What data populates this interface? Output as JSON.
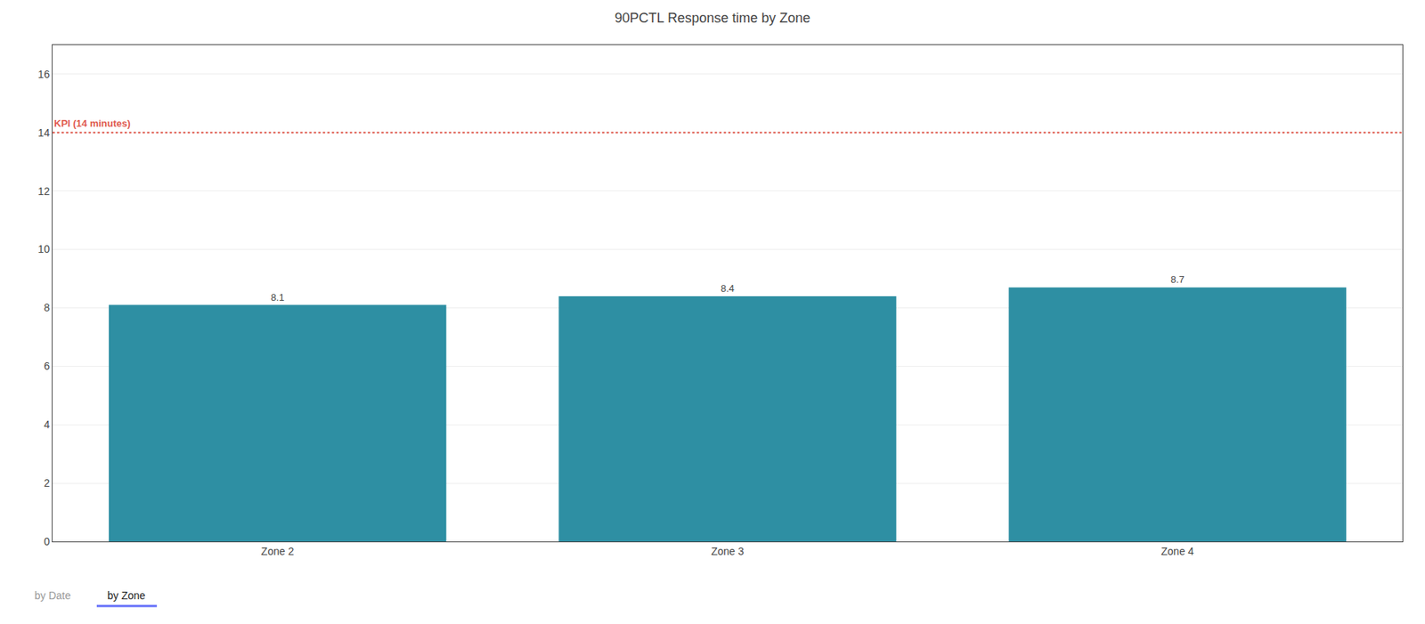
{
  "chart_data": {
    "type": "bar",
    "title": "90PCTL Response time by Zone",
    "categories": [
      "Zone 2",
      "Zone 3",
      "Zone 4"
    ],
    "values": [
      8.1,
      8.4,
      8.7
    ],
    "color": "#2e8fa3",
    "ylim": [
      0,
      17
    ],
    "yticks": [
      0,
      2,
      4,
      6,
      8,
      10,
      12,
      14,
      16
    ],
    "grid": true,
    "data_labels": true,
    "kpi_line": {
      "value": 14,
      "label": "KPI (14 minutes)",
      "color": "#e05a4e"
    },
    "tabs": {
      "labels": [
        "by Date",
        "by Zone"
      ],
      "active": "by Zone"
    }
  }
}
